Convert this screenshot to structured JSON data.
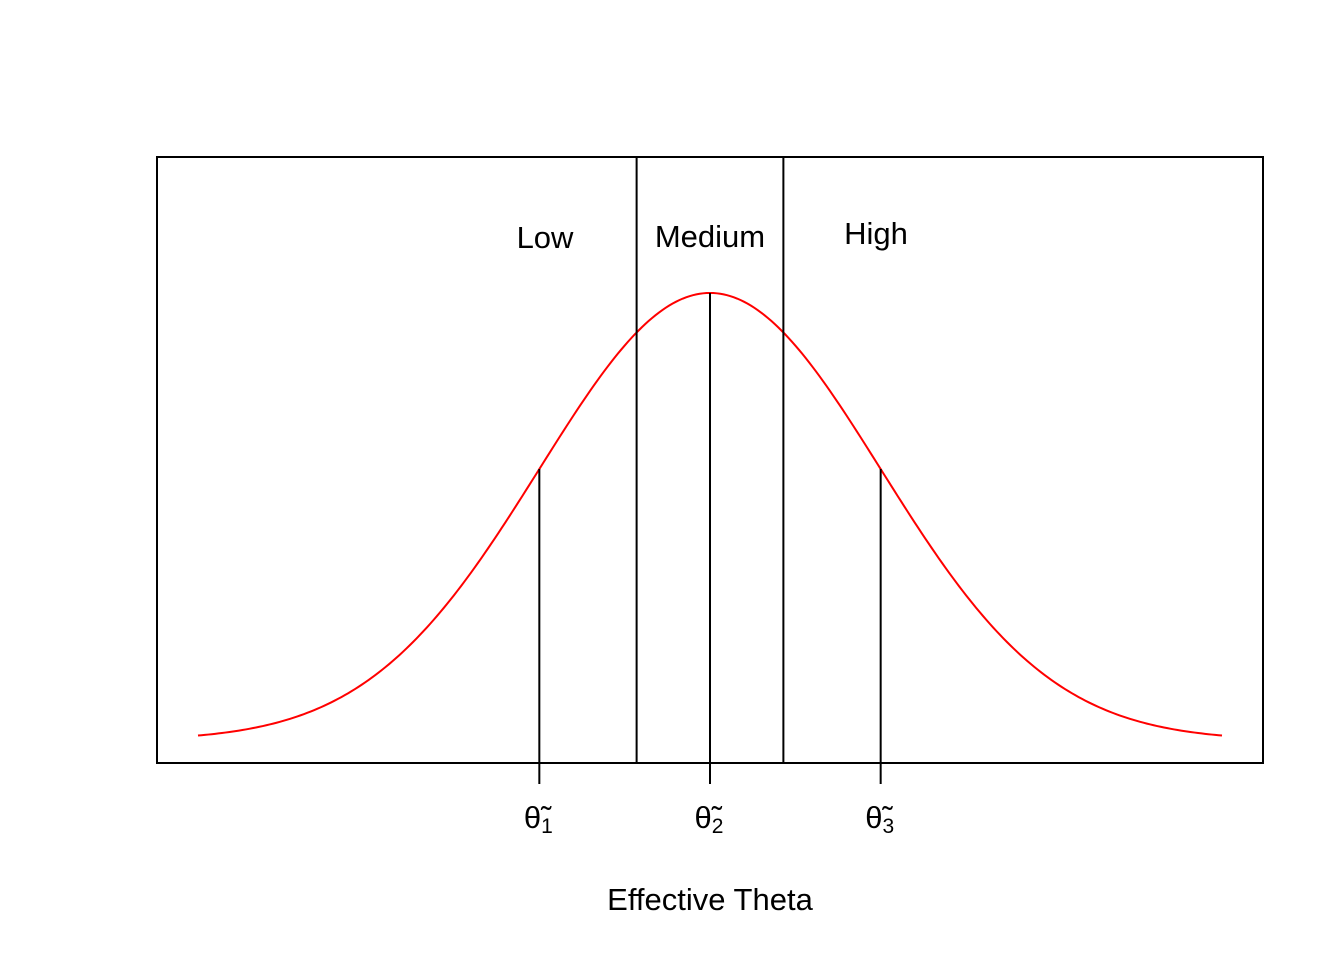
{
  "chart_data": {
    "type": "line",
    "title": "",
    "xlabel": "Effective Theta",
    "ylabel": "",
    "xlim": [
      -3.2,
      3.2
    ],
    "ylim": [
      0,
      0.42
    ],
    "grid": false,
    "curve_color": "#ff0000",
    "series": [
      {
        "x": [
          -3.0,
          -2.5,
          -2.0,
          -1.5,
          -1.2,
          -1.0,
          -0.8,
          -0.6,
          -0.4,
          -0.2,
          0.0,
          0.2,
          0.4,
          0.6,
          0.8,
          1.0,
          1.2,
          1.5,
          2.0,
          2.5,
          3.0
        ],
        "values": [
          0.0044,
          0.0175,
          0.054,
          0.1295,
          0.1942,
          0.242,
          0.2897,
          0.3332,
          0.3683,
          0.391,
          0.3989,
          0.391,
          0.3683,
          0.3332,
          0.2897,
          0.242,
          0.1942,
          0.1295,
          0.054,
          0.0175,
          0.0044
        ]
      }
    ],
    "cutpoints": [
      -0.43,
      0.43
    ],
    "regions": [
      "Low",
      "Medium",
      "High"
    ],
    "tick_positions": [
      -1.0,
      0.0,
      1.0
    ],
    "tick_labels": [
      {
        "base": "θ̃",
        "sub": "1"
      },
      {
        "base": "θ̃",
        "sub": "2"
      },
      {
        "base": "θ̃",
        "sub": "3"
      }
    ]
  }
}
